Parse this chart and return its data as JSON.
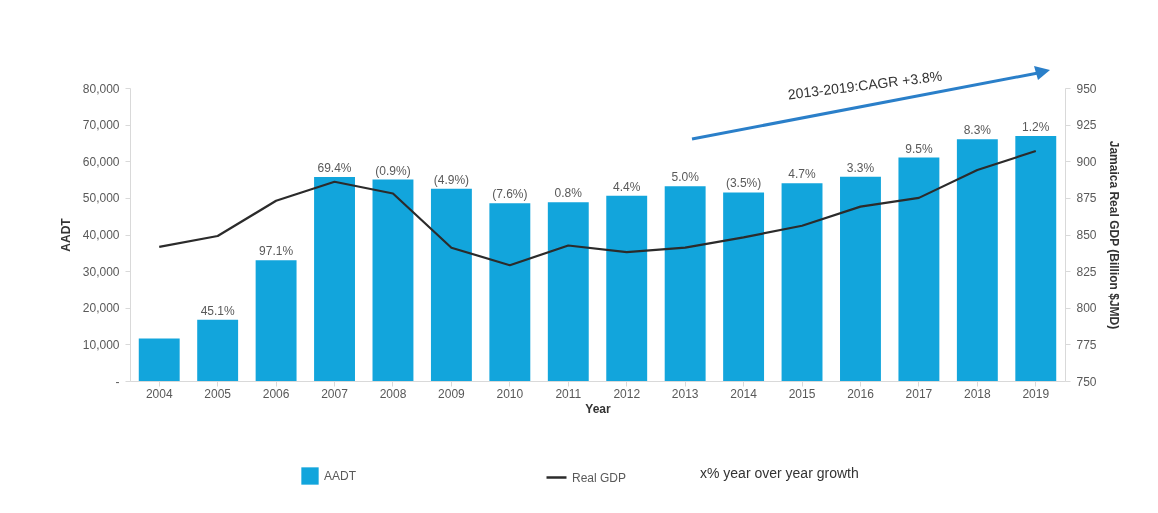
{
  "chart_data": {
    "type": "bar",
    "categories": [
      "2004",
      "2005",
      "2006",
      "2007",
      "2008",
      "2009",
      "2010",
      "2011",
      "2012",
      "2013",
      "2014",
      "2015",
      "2016",
      "2017",
      "2018",
      "2019"
    ],
    "series": [
      {
        "name": "AADT",
        "type": "bar",
        "color": "#12a5dc",
        "values": [
          11600,
          16700,
          33000,
          55700,
          55000,
          52500,
          48500,
          48800,
          50600,
          53200,
          51500,
          54000,
          55800,
          61000,
          66000,
          66900
        ]
      },
      {
        "name": "Real GDP",
        "type": "line",
        "axis": "y2",
        "color": "#2b2b2b",
        "values": [
          841.5,
          849,
          873,
          886,
          878,
          841,
          829,
          842.5,
          838,
          841,
          848,
          856,
          869,
          875,
          894,
          907
        ]
      }
    ],
    "xlabel": "Year",
    "ylabel": "AADT",
    "y2label": "Jamaica Real GDP (Billion $JMD)",
    "ylim": [
      0,
      80000
    ],
    "yticks": [
      {
        "value": 0,
        "label": "-"
      },
      {
        "value": 10000,
        "label": "10,000"
      },
      {
        "value": 20000,
        "label": "20,000"
      },
      {
        "value": 30000,
        "label": "30,000"
      },
      {
        "value": 40000,
        "label": "40,000"
      },
      {
        "value": 50000,
        "label": "50,000"
      },
      {
        "value": 60000,
        "label": "60,000"
      },
      {
        "value": 70000,
        "label": "70,000"
      },
      {
        "value": 80000,
        "label": "80,000"
      }
    ],
    "y2lim": [
      750,
      950
    ],
    "y2ticks": [
      750,
      775,
      800,
      825,
      850,
      875,
      900,
      925,
      950
    ],
    "legend": "bottom",
    "grid": false,
    "annotations": [
      "2013-2019:CAGR +3.8%",
      "x%   year over year growth",
      {
        "text": "45.1%",
        "x": "2005",
        "y": 16700
      },
      {
        "text": "97.1%",
        "x": "2006",
        "y": 33000
      },
      {
        "text": "69.4%",
        "x": "2007",
        "y": 55700
      },
      {
        "text": "(0.9%)",
        "x": "2008",
        "y": 55000
      },
      {
        "text": "(4.9%)",
        "x": "2009",
        "y": 52500
      },
      {
        "text": "(7.6%)",
        "x": "2010",
        "y": 48500
      },
      {
        "text": "0.8%",
        "x": "2011",
        "y": 48800
      },
      {
        "text": "4.4%",
        "x": "2012",
        "y": 50600
      },
      {
        "text": "5.0%",
        "x": "2013",
        "y": 53200
      },
      {
        "text": "(3.5%)",
        "x": "2014",
        "y": 51500
      },
      {
        "text": "4.7%",
        "x": "2015",
        "y": 54000
      },
      {
        "text": "3.3%",
        "x": "2016",
        "y": 55800
      },
      {
        "text": "9.5%",
        "x": "2017",
        "y": 61000
      },
      {
        "text": "8.3%",
        "x": "2018",
        "y": 66000
      },
      {
        "text": "1.2%",
        "x": "2019",
        "y": 66900
      }
    ]
  }
}
